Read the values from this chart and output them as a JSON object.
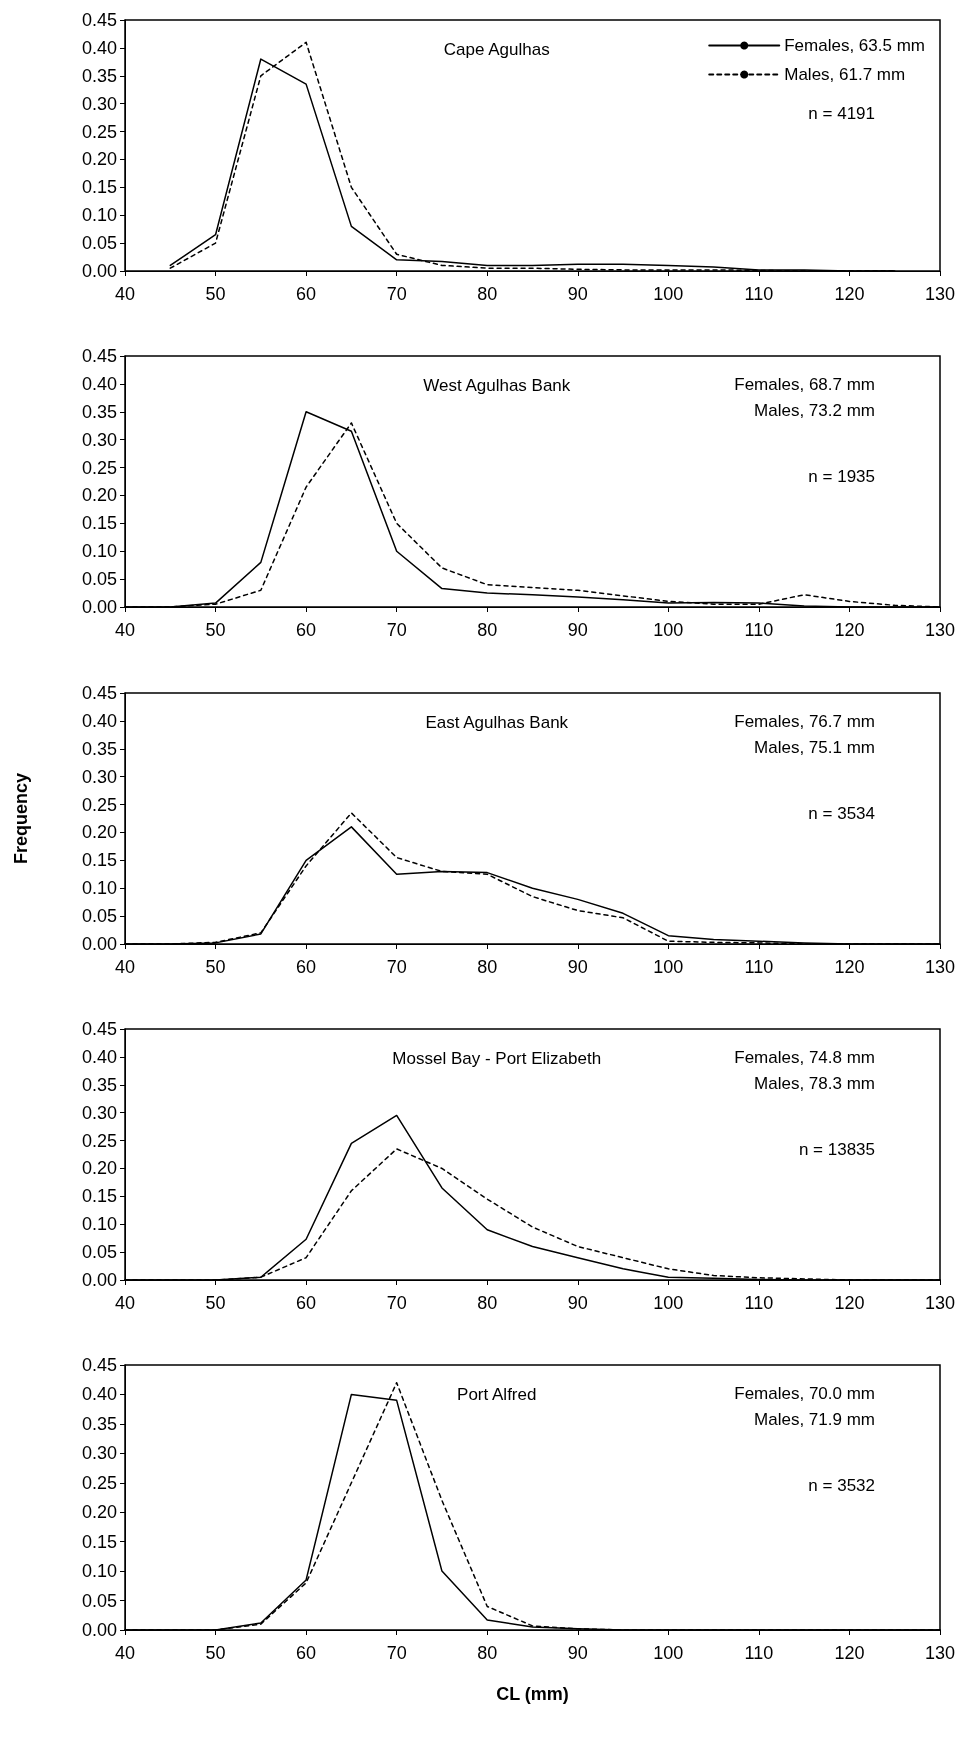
{
  "chart_data": [
    {
      "type": "line",
      "title": "Cape Agulhas",
      "annotations": [
        "n = 4191"
      ],
      "legend": "top right",
      "marker": "none",
      "grid": false,
      "xlim": [
        40,
        130
      ],
      "xticks": [
        40,
        50,
        60,
        70,
        80,
        90,
        100,
        110,
        120,
        130
      ],
      "ylim": [
        0,
        0.45
      ],
      "yticks": [
        {
          "value": 0,
          "label": "0.00"
        },
        0.05,
        {
          "value": 0.1,
          "label": "0.10"
        },
        0.15,
        {
          "value": 0.2,
          "label": "0.20"
        },
        0.25,
        {
          "value": 0.3,
          "label": "0.30"
        },
        0.35,
        {
          "value": 0.4,
          "label": "0.40"
        },
        0.45
      ],
      "x": [
        45,
        50,
        55,
        60,
        65,
        70,
        75,
        80,
        85,
        90,
        95,
        100,
        105,
        110,
        115,
        120,
        125
      ],
      "series": [
        {
          "name": "Females, 63.5 mm",
          "color": "#000000",
          "line_style": "solid",
          "values": [
            0.01,
            0.065,
            0.38,
            0.335,
            0.08,
            0.02,
            0.017,
            0.01,
            0.01,
            0.012,
            0.012,
            0.01,
            0.007,
            0.002,
            0.002,
            0,
            0
          ]
        },
        {
          "name": "Males, 61.7 mm",
          "color": "#000000",
          "line_style": "dashed",
          "values": [
            0.005,
            0.05,
            0.35,
            0.41,
            0.15,
            0.03,
            0.01,
            0.005,
            0.005,
            0.003,
            0.002,
            0.002,
            0.002,
            0.001,
            0,
            0,
            0
          ]
        }
      ]
    },
    {
      "type": "line",
      "title": "West Agulhas Bank",
      "annotations": [
        "Females, 68.7 mm",
        "Males, 73.2 mm",
        "n = 1935"
      ],
      "marker": "none",
      "grid": false,
      "xlim": [
        40,
        130
      ],
      "xticks": [
        40,
        50,
        60,
        70,
        80,
        90,
        100,
        110,
        120,
        130
      ],
      "ylim": [
        0,
        0.45
      ],
      "yticks": [
        {
          "value": 0,
          "label": "0.00"
        },
        0.05,
        {
          "value": 0.1,
          "label": "0.10"
        },
        0.15,
        {
          "value": 0.2,
          "label": "0.20"
        },
        0.25,
        {
          "value": 0.3,
          "label": "0.30"
        },
        0.35,
        {
          "value": 0.4,
          "label": "0.40"
        },
        0.45
      ],
      "x": [
        40,
        45,
        50,
        55,
        60,
        65,
        70,
        75,
        80,
        85,
        90,
        95,
        100,
        105,
        110,
        115,
        120,
        125,
        130
      ],
      "series": [
        {
          "color": "#000000",
          "line_style": "solid",
          "values": [
            0,
            0,
            0.007,
            0.08,
            0.35,
            0.315,
            0.1,
            0.033,
            0.025,
            0.022,
            0.018,
            0.013,
            0.007,
            0.008,
            0.007,
            0.002,
            0,
            0,
            0
          ]
        },
        {
          "color": "#000000",
          "line_style": "dashed",
          "values": [
            0,
            0,
            0.005,
            0.03,
            0.215,
            0.33,
            0.15,
            0.07,
            0.04,
            0.035,
            0.03,
            0.02,
            0.01,
            0.005,
            0.005,
            0.022,
            0.01,
            0.003,
            0
          ]
        }
      ]
    },
    {
      "type": "line",
      "title": "East Agulhas Bank",
      "ylabel": "Frequency",
      "annotations": [
        "Females, 76.7 mm",
        "Males, 75.1 mm",
        "n = 3534"
      ],
      "marker": "none",
      "grid": false,
      "xlim": [
        40,
        130
      ],
      "xticks": [
        40,
        50,
        60,
        70,
        80,
        90,
        100,
        110,
        120,
        130
      ],
      "ylim": [
        0,
        0.45
      ],
      "yticks": [
        {
          "value": 0,
          "label": "0.00"
        },
        0.05,
        {
          "value": 0.1,
          "label": "0.10"
        },
        0.15,
        {
          "value": 0.2,
          "label": "0.20"
        },
        0.25,
        {
          "value": 0.3,
          "label": "0.30"
        },
        0.35,
        {
          "value": 0.4,
          "label": "0.40"
        },
        0.45
      ],
      "x": [
        40,
        45,
        50,
        55,
        60,
        65,
        70,
        75,
        80,
        85,
        90,
        95,
        100,
        105,
        110,
        115,
        120,
        125,
        130
      ],
      "series": [
        {
          "color": "#000000",
          "line_style": "solid",
          "values": [
            0,
            0,
            0.002,
            0.018,
            0.15,
            0.21,
            0.125,
            0.13,
            0.128,
            0.1,
            0.08,
            0.055,
            0.015,
            0.008,
            0.005,
            0.002,
            0,
            0,
            0
          ]
        },
        {
          "color": "#000000",
          "line_style": "dashed",
          "values": [
            0,
            0,
            0.003,
            0.02,
            0.14,
            0.235,
            0.155,
            0.13,
            0.125,
            0.085,
            0.06,
            0.047,
            0.005,
            0.003,
            0.002,
            0,
            0,
            0,
            0
          ]
        }
      ]
    },
    {
      "type": "line",
      "title": "Mossel Bay - Port Elizabeth",
      "annotations": [
        "Females, 74.8 mm",
        "Males, 78.3 mm",
        "n = 13835"
      ],
      "marker": "none",
      "grid": false,
      "xlim": [
        40,
        130
      ],
      "xticks": [
        40,
        50,
        60,
        70,
        80,
        90,
        100,
        110,
        120,
        130
      ],
      "ylim": [
        0,
        0.45
      ],
      "yticks": [
        {
          "value": 0,
          "label": "0.00"
        },
        0.05,
        {
          "value": 0.1,
          "label": "0.10"
        },
        0.15,
        {
          "value": 0.2,
          "label": "0.20"
        },
        0.25,
        {
          "value": 0.3,
          "label": "0.30"
        },
        0.35,
        {
          "value": 0.4,
          "label": "0.40"
        },
        0.45
      ],
      "x": [
        40,
        45,
        50,
        55,
        60,
        65,
        70,
        75,
        80,
        85,
        90,
        95,
        100,
        105,
        110,
        115,
        120,
        125,
        130
      ],
      "series": [
        {
          "color": "#000000",
          "line_style": "solid",
          "values": [
            0,
            0,
            0,
            0.005,
            0.073,
            0.245,
            0.295,
            0.165,
            0.09,
            0.06,
            0.04,
            0.02,
            0.005,
            0.003,
            0.001,
            0,
            0,
            0,
            0
          ]
        },
        {
          "color": "#000000",
          "line_style": "dashed",
          "values": [
            0,
            0,
            0,
            0.005,
            0.04,
            0.16,
            0.235,
            0.2,
            0.145,
            0.095,
            0.06,
            0.04,
            0.02,
            0.008,
            0.004,
            0.002,
            0,
            0,
            0
          ]
        }
      ]
    },
    {
      "type": "line",
      "title": "Port Alfred",
      "xlabel": "CL (mm)",
      "annotations": [
        "Females, 70.0 mm",
        "Males, 71.9 mm",
        "n = 3532"
      ],
      "marker": "none",
      "grid": false,
      "xlim": [
        40,
        130
      ],
      "xticks": [
        40,
        50,
        60,
        70,
        80,
        90,
        100,
        110,
        120,
        130
      ],
      "ylim": [
        0,
        0.45
      ],
      "yticks": [
        {
          "value": 0,
          "label": "0.00"
        },
        0.05,
        {
          "value": 0.1,
          "label": "0.10"
        },
        0.15,
        {
          "value": 0.2,
          "label": "0.20"
        },
        0.25,
        {
          "value": 0.3,
          "label": "0.30"
        },
        0.35,
        {
          "value": 0.4,
          "label": "0.40"
        },
        0.45
      ],
      "x": [
        40,
        45,
        50,
        55,
        60,
        65,
        70,
        75,
        80,
        85,
        90,
        95,
        100,
        105,
        110,
        115,
        120,
        125,
        130
      ],
      "series": [
        {
          "color": "#000000",
          "line_style": "solid",
          "values": [
            0,
            0,
            0,
            0.012,
            0.085,
            0.4,
            0.39,
            0.1,
            0.017,
            0.005,
            0.002,
            0,
            0,
            0,
            0,
            0,
            0,
            0,
            0
          ]
        },
        {
          "color": "#000000",
          "line_style": "dashed",
          "values": [
            0,
            0,
            0,
            0.01,
            0.08,
            0.25,
            0.42,
            0.22,
            0.04,
            0.007,
            0.002,
            0,
            0,
            0,
            0,
            0,
            0,
            0,
            0
          ]
        }
      ]
    }
  ]
}
